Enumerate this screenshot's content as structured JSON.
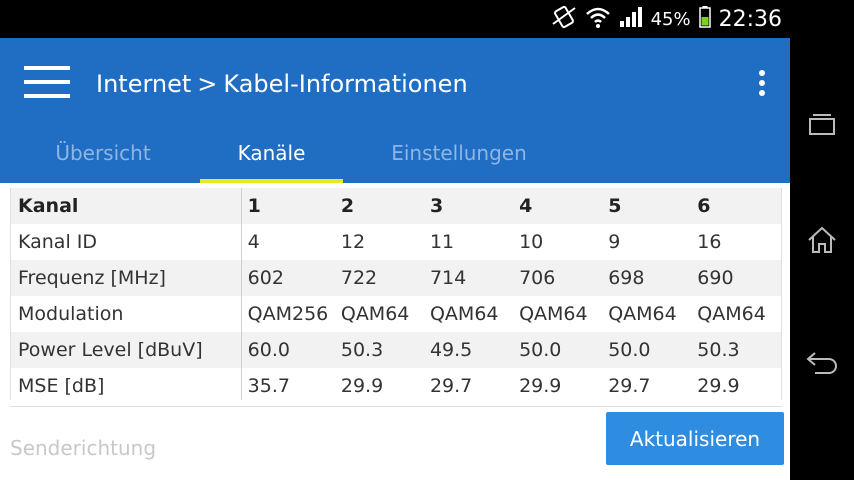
{
  "status_bar": {
    "battery_percent": "45%",
    "time": "22:36",
    "icons": [
      "vibrate-icon",
      "wifi-icon",
      "signal-icon",
      "battery-icon"
    ]
  },
  "nav": {
    "icons": [
      "recent-apps-icon",
      "home-icon",
      "back-icon"
    ]
  },
  "header": {
    "breadcrumb_root": "Internet",
    "breadcrumb_separator": ">",
    "breadcrumb_current": "Kabel-Informationen",
    "color": "#1f6ec4"
  },
  "tabs": [
    {
      "label": "Übersicht",
      "active": false
    },
    {
      "label": "Kanäle",
      "active": true
    },
    {
      "label": "Einstellungen",
      "active": false
    }
  ],
  "table": {
    "rows": [
      {
        "label": "Kanal",
        "values": [
          "1",
          "2",
          "3",
          "4",
          "5",
          "6"
        ]
      },
      {
        "label": "Kanal ID",
        "values": [
          "4",
          "12",
          "11",
          "10",
          "9",
          "16"
        ]
      },
      {
        "label": "Frequenz [MHz]",
        "values": [
          "602",
          "722",
          "714",
          "706",
          "698",
          "690"
        ]
      },
      {
        "label": "Modulation",
        "values": [
          "QAM256",
          "QAM64",
          "QAM64",
          "QAM64",
          "QAM64",
          "QAM64"
        ]
      },
      {
        "label": "Power Level [dBuV]",
        "values": [
          "60.0",
          "50.3",
          "49.5",
          "50.0",
          "50.0",
          "50.3"
        ]
      },
      {
        "label": "MSE [dB]",
        "values": [
          "35.7",
          "29.9",
          "29.7",
          "29.9",
          "29.7",
          "29.9"
        ]
      }
    ]
  },
  "footer": {
    "section_label": "Senderichtung",
    "refresh_label": "Aktualisieren"
  }
}
